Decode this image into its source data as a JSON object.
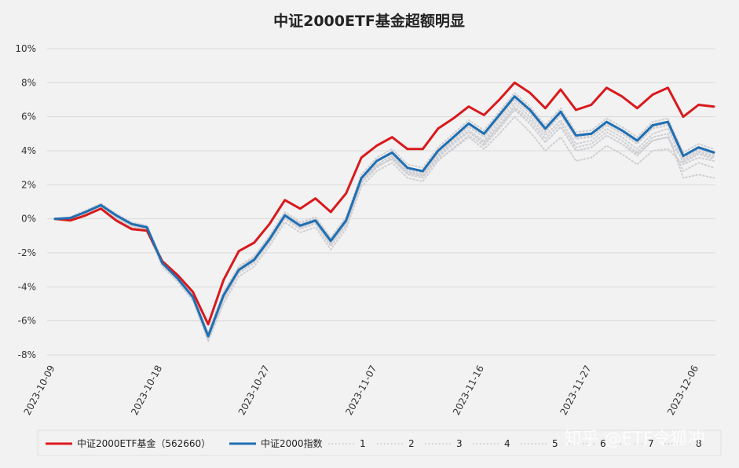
{
  "chart_data": {
    "type": "line",
    "title": "中证2000ETF基金超额明显",
    "ylim": [
      -8,
      10
    ],
    "ytick_step": 2,
    "ytick_suffix": "%",
    "xtick_labels": [
      "2023-10-09",
      "2023-10-18",
      "2023-10-27",
      "2023-11-07",
      "2023-11-16",
      "2023-11-27",
      "2023-12-06"
    ],
    "xtick_index": [
      0,
      7,
      14,
      21,
      28,
      35,
      42
    ],
    "grid": true,
    "legend_position": "bottom",
    "x": [
      "2023-10-09",
      "2023-10-10",
      "2023-10-11",
      "2023-10-12",
      "2023-10-13",
      "2023-10-16",
      "2023-10-17",
      "2023-10-18",
      "2023-10-19",
      "2023-10-20",
      "2023-10-23",
      "2023-10-24",
      "2023-10-25",
      "2023-10-26",
      "2023-10-27",
      "2023-10-30",
      "2023-10-31",
      "2023-11-01",
      "2023-11-02",
      "2023-11-03",
      "2023-11-06",
      "2023-11-07",
      "2023-11-08",
      "2023-11-09",
      "2023-11-10",
      "2023-11-13",
      "2023-11-14",
      "2023-11-15",
      "2023-11-16",
      "2023-11-17",
      "2023-11-20",
      "2023-11-21",
      "2023-11-22",
      "2023-11-23",
      "2023-11-24",
      "2023-11-27",
      "2023-11-28",
      "2023-11-29",
      "2023-11-30",
      "2023-12-01",
      "2023-12-04",
      "2023-12-05",
      "2023-12-06",
      "2023-12-07"
    ],
    "series": [
      {
        "name": "中证2000ETF基金（562660）",
        "color": "#d9191c",
        "style": "solid",
        "width": 3,
        "values": [
          0,
          -0.1,
          0.2,
          0.6,
          -0.1,
          -0.6,
          -0.7,
          -2.5,
          -3.3,
          -4.3,
          -6.2,
          -3.6,
          -1.9,
          -1.4,
          -0.3,
          1.1,
          0.6,
          1.2,
          0.4,
          1.5,
          3.6,
          4.3,
          4.8,
          4.1,
          4.1,
          5.3,
          5.9,
          6.6,
          6.1,
          7.0,
          8.0,
          7.4,
          6.5,
          7.6,
          6.4,
          6.7,
          7.7,
          7.2,
          6.5,
          7.3,
          7.7,
          6.0,
          6.7,
          6.6
        ]
      },
      {
        "name": "中证2000指数",
        "color": "#1f6fb2",
        "style": "solid",
        "width": 3,
        "values": [
          0,
          0.05,
          0.4,
          0.8,
          0.2,
          -0.3,
          -0.5,
          -2.6,
          -3.5,
          -4.6,
          -6.9,
          -4.5,
          -3.0,
          -2.4,
          -1.2,
          0.2,
          -0.4,
          -0.1,
          -1.3,
          -0.1,
          2.4,
          3.4,
          3.9,
          3.0,
          2.8,
          4.0,
          4.8,
          5.6,
          5.0,
          6.1,
          7.2,
          6.4,
          5.3,
          6.3,
          4.9,
          5.0,
          5.7,
          5.2,
          4.6,
          5.5,
          5.7,
          3.7,
          4.2,
          3.9
        ]
      },
      {
        "name": "1",
        "color": "#cfcfd4",
        "style": "dotted",
        "width": 2,
        "values": [
          0,
          0.0,
          0.3,
          0.8,
          0.1,
          -0.4,
          -0.6,
          -2.7,
          -3.6,
          -4.7,
          -7.1,
          -4.8,
          -3.2,
          -2.6,
          -1.4,
          0.0,
          -0.6,
          -0.3,
          -1.6,
          -0.4,
          2.1,
          3.0,
          3.6,
          2.7,
          2.5,
          3.7,
          4.5,
          5.2,
          4.6,
          5.7,
          6.8,
          6.0,
          4.9,
          5.8,
          4.4,
          4.6,
          5.3,
          4.8,
          4.1,
          5.0,
          5.3,
          3.3,
          3.8,
          3.5
        ]
      },
      {
        "name": "2",
        "color": "#cfcfd4",
        "style": "dotted",
        "width": 2,
        "values": [
          0,
          0.1,
          0.5,
          0.9,
          0.3,
          -0.2,
          -0.4,
          -2.4,
          -3.3,
          -4.4,
          -6.7,
          -4.3,
          -2.8,
          -2.2,
          -1.0,
          0.4,
          -0.2,
          0.1,
          -1.1,
          0.1,
          2.6,
          3.6,
          4.1,
          3.2,
          3.0,
          4.2,
          5.0,
          5.8,
          5.2,
          6.3,
          7.4,
          6.6,
          5.5,
          6.5,
          5.1,
          5.2,
          5.9,
          5.4,
          4.8,
          5.7,
          5.9,
          3.9,
          4.4,
          4.1
        ]
      },
      {
        "name": "3",
        "color": "#cfcfd4",
        "style": "dotted",
        "width": 2,
        "values": [
          0,
          -0.05,
          0.3,
          0.7,
          0.0,
          -0.5,
          -0.7,
          -2.8,
          -3.7,
          -4.8,
          -7.2,
          -5.0,
          -3.4,
          -2.8,
          -1.6,
          -0.2,
          -0.8,
          -0.5,
          -1.8,
          -0.6,
          1.9,
          2.8,
          3.3,
          2.4,
          2.2,
          3.4,
          4.2,
          4.9,
          4.3,
          5.3,
          6.4,
          5.6,
          4.5,
          5.4,
          4.0,
          4.2,
          4.9,
          4.4,
          3.7,
          4.6,
          4.8,
          2.8,
          3.3,
          3.0
        ]
      },
      {
        "name": "4",
        "color": "#cfcfd4",
        "style": "dotted",
        "width": 2,
        "values": [
          0,
          0.05,
          0.4,
          0.8,
          0.2,
          -0.3,
          -0.5,
          -2.5,
          -3.4,
          -4.5,
          -6.8,
          -4.4,
          -2.9,
          -2.3,
          -1.1,
          0.3,
          -0.3,
          0.0,
          -1.2,
          0.0,
          2.3,
          3.2,
          3.7,
          2.8,
          2.6,
          3.8,
          4.6,
          5.4,
          4.8,
          5.9,
          7.0,
          6.2,
          5.1,
          6.1,
          4.7,
          4.8,
          5.5,
          5.0,
          4.4,
          5.3,
          5.5,
          3.5,
          4.0,
          3.7
        ]
      },
      {
        "name": "5",
        "color": "#cfcfd4",
        "style": "dotted",
        "width": 2,
        "values": [
          0,
          0.0,
          0.3,
          0.7,
          0.1,
          -0.4,
          -0.6,
          -2.6,
          -3.5,
          -4.6,
          -7.0,
          -4.7,
          -3.1,
          -2.5,
          -1.3,
          0.1,
          -0.5,
          -0.2,
          -1.5,
          -0.3,
          2.2,
          3.1,
          3.5,
          2.6,
          2.4,
          3.6,
          4.4,
          5.1,
          4.5,
          5.5,
          6.6,
          5.8,
          4.7,
          5.6,
          4.2,
          4.4,
          5.1,
          4.6,
          3.9,
          4.8,
          5.0,
          2.4,
          2.6,
          2.4
        ]
      },
      {
        "name": "6",
        "color": "#cfcfd4",
        "style": "dotted",
        "width": 2,
        "values": [
          0,
          0.1,
          0.4,
          0.9,
          0.2,
          -0.3,
          -0.5,
          -2.5,
          -3.4,
          -4.5,
          -6.8,
          -4.4,
          -2.9,
          -2.3,
          -1.1,
          0.2,
          -0.4,
          -0.1,
          -1.3,
          -0.1,
          2.4,
          3.4,
          3.8,
          2.9,
          2.7,
          3.9,
          4.7,
          5.5,
          4.9,
          6.0,
          7.1,
          6.3,
          5.2,
          6.2,
          4.8,
          4.9,
          5.6,
          5.1,
          4.5,
          5.4,
          5.6,
          3.6,
          4.1,
          3.8
        ]
      },
      {
        "name": "7",
        "color": "#cfcfd4",
        "style": "dotted",
        "width": 2,
        "values": [
          0,
          0.0,
          0.3,
          0.8,
          0.1,
          -0.4,
          -0.6,
          -2.6,
          -3.5,
          -4.6,
          -6.9,
          -4.6,
          -3.0,
          -2.4,
          -1.2,
          0.1,
          -0.5,
          -0.2,
          -1.4,
          -0.2,
          2.2,
          3.1,
          3.5,
          2.7,
          2.5,
          3.5,
          4.1,
          4.8,
          4.1,
          5.0,
          6.0,
          5.1,
          4.0,
          4.8,
          3.4,
          3.6,
          4.3,
          3.8,
          3.2,
          4.0,
          4.1,
          3.2,
          3.6,
          3.4
        ]
      },
      {
        "name": "8",
        "color": "#cfcfd4",
        "style": "dotted",
        "width": 2,
        "values": [
          0,
          0.05,
          0.35,
          0.75,
          0.15,
          -0.35,
          -0.55,
          -2.55,
          -3.45,
          -4.55,
          -6.85,
          -4.5,
          -3.0,
          -2.35,
          -1.15,
          0.15,
          -0.45,
          -0.15,
          -1.35,
          -0.15,
          2.3,
          3.2,
          3.7,
          2.8,
          2.6,
          3.7,
          4.4,
          5.1,
          4.4,
          5.4,
          6.5,
          5.6,
          4.5,
          5.4,
          4.0,
          4.2,
          4.9,
          4.4,
          3.8,
          4.6,
          4.8,
          3.4,
          3.9,
          3.6
        ]
      }
    ]
  },
  "watermark": "知乎 @ETF令狐冲"
}
